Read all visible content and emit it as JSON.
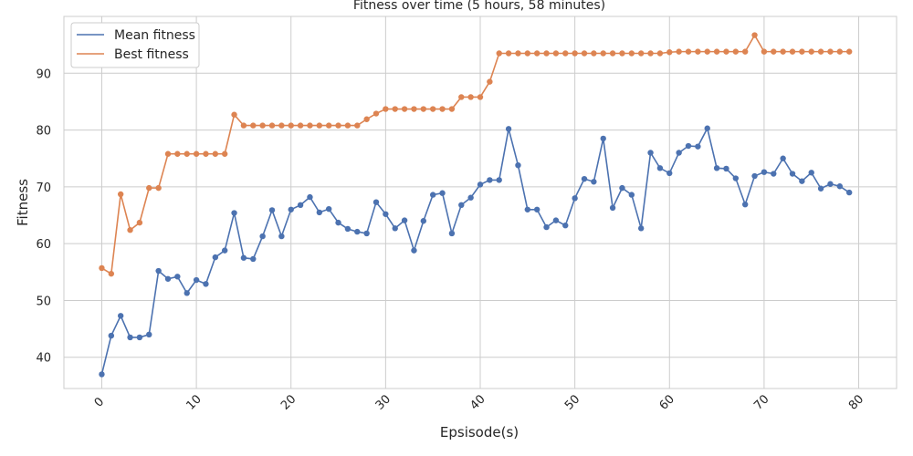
{
  "chart_data": {
    "type": "line",
    "title": "Fitness over time (5 hours, 58 minutes)",
    "xlabel": "Epsisode(s)",
    "ylabel": "Fitness",
    "xlim": [
      -4,
      84
    ],
    "ylim": [
      34.5,
      100
    ],
    "xticks": [
      0,
      10,
      20,
      30,
      40,
      50,
      60,
      70,
      80
    ],
    "xtick_labels": [
      "0",
      "10",
      "20",
      "30",
      "40",
      "50",
      "60",
      "70",
      "80"
    ],
    "yticks": [
      40,
      50,
      60,
      70,
      80,
      90
    ],
    "ytick_labels": [
      "40",
      "50",
      "60",
      "70",
      "80",
      "90"
    ],
    "grid": true,
    "legend_placement": "top-left",
    "x": [
      0,
      1,
      2,
      3,
      4,
      5,
      6,
      7,
      8,
      9,
      10,
      11,
      12,
      13,
      14,
      15,
      16,
      17,
      18,
      19,
      20,
      21,
      22,
      23,
      24,
      25,
      26,
      27,
      28,
      29,
      30,
      31,
      32,
      33,
      34,
      35,
      36,
      37,
      38,
      39,
      40,
      41,
      42,
      43,
      44,
      45,
      46,
      47,
      48,
      49,
      50,
      51,
      52,
      53,
      54,
      55,
      56,
      57,
      58,
      59,
      60,
      61,
      62,
      63,
      64,
      65,
      66,
      67,
      68,
      69,
      70,
      71,
      72,
      73,
      74,
      75,
      76,
      77,
      78,
      79
    ],
    "series": [
      {
        "name": "Mean fitness",
        "color": "#4c72b0",
        "values": [
          37.0,
          43.8,
          47.3,
          43.5,
          43.5,
          44.0,
          55.2,
          53.8,
          54.2,
          51.3,
          53.6,
          52.9,
          57.6,
          58.8,
          65.4,
          57.5,
          57.3,
          61.3,
          65.9,
          61.3,
          66.0,
          66.8,
          68.2,
          65.5,
          66.1,
          63.7,
          62.6,
          62.1,
          61.8,
          67.3,
          65.2,
          62.7,
          64.1,
          58.8,
          64.0,
          68.6,
          68.9,
          61.8,
          66.8,
          68.1,
          70.4,
          71.2,
          71.2,
          80.2,
          73.8,
          66.0,
          66.0,
          62.9,
          64.1,
          63.2,
          68.0,
          71.4,
          70.9,
          78.5,
          66.3,
          69.8,
          68.6,
          62.7,
          76.0,
          73.3,
          72.4,
          76.0,
          77.2,
          77.1,
          80.3,
          73.3,
          73.2,
          71.5,
          66.9,
          71.9,
          72.6,
          72.3,
          75.0,
          72.3,
          71.0,
          72.5,
          69.7,
          70.5,
          70.1,
          69.0
        ]
      },
      {
        "name": "Best fitness",
        "color": "#dd8452",
        "values": [
          55.7,
          54.7,
          68.7,
          62.4,
          63.7,
          69.8,
          69.8,
          75.8,
          75.8,
          75.8,
          75.8,
          75.8,
          75.8,
          75.8,
          82.7,
          80.8,
          80.8,
          80.8,
          80.8,
          80.8,
          80.8,
          80.8,
          80.8,
          80.8,
          80.8,
          80.8,
          80.8,
          80.8,
          81.9,
          82.9,
          83.7,
          83.7,
          83.7,
          83.7,
          83.7,
          83.7,
          83.7,
          83.7,
          85.8,
          85.8,
          85.8,
          88.5,
          93.5,
          93.5,
          93.5,
          93.5,
          93.5,
          93.5,
          93.5,
          93.5,
          93.5,
          93.5,
          93.5,
          93.5,
          93.5,
          93.5,
          93.5,
          93.5,
          93.5,
          93.5,
          93.7,
          93.8,
          93.8,
          93.8,
          93.8,
          93.8,
          93.8,
          93.8,
          93.8,
          96.7,
          93.8,
          93.8,
          93.8,
          93.8,
          93.8,
          93.8,
          93.8,
          93.8,
          93.8,
          93.8
        ]
      }
    ]
  }
}
